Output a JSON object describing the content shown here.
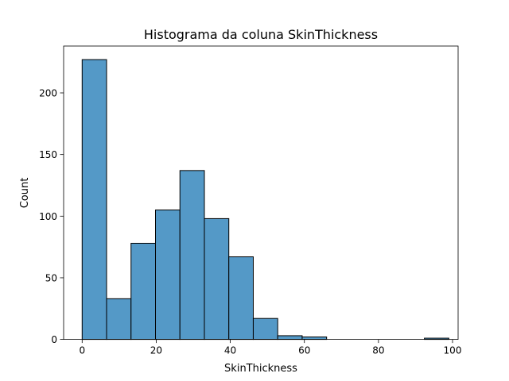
{
  "chart_data": {
    "type": "bar",
    "title": "Histograma da coluna SkinThickness",
    "xlabel": "SkinThickness",
    "ylabel": "Count",
    "bin_edges": [
      0,
      6.6,
      13.2,
      19.8,
      26.4,
      33.0,
      39.6,
      46.2,
      52.8,
      59.4,
      66.0,
      72.6,
      79.2,
      85.8,
      92.4,
      99.0
    ],
    "values": [
      227,
      33,
      78,
      105,
      137,
      98,
      67,
      17,
      3,
      2,
      0,
      0,
      0,
      0,
      1
    ],
    "xlim": [
      -5,
      101.5
    ],
    "ylim": [
      0,
      238
    ],
    "xticks": [
      0,
      20,
      40,
      60,
      80,
      100
    ],
    "yticks": [
      0,
      50,
      100,
      150,
      200
    ],
    "grid": false,
    "bar_color": "#5499c7",
    "edge_color": "#000000"
  }
}
